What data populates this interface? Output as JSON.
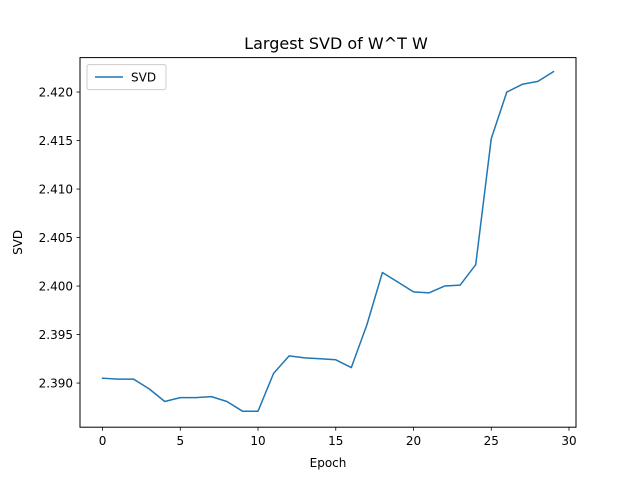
{
  "chart_data": {
    "type": "line",
    "title": "Largest SVD of W^T W",
    "xlabel": "Epoch",
    "ylabel": "SVD",
    "xlim": [
      -1.45,
      30.45
    ],
    "ylim": [
      2.38545,
      2.42355
    ],
    "xticks": [
      0,
      5,
      10,
      15,
      20,
      25,
      30
    ],
    "xtick_labels": [
      "0",
      "5",
      "10",
      "15",
      "20",
      "25",
      "30"
    ],
    "yticks": [
      2.39,
      2.395,
      2.4,
      2.405,
      2.41,
      2.415,
      2.42
    ],
    "ytick_labels": [
      "2.390",
      "2.395",
      "2.400",
      "2.405",
      "2.410",
      "2.415",
      "2.420"
    ],
    "grid": false,
    "legend": {
      "position": "upper-left"
    },
    "series": [
      {
        "name": "SVD",
        "color": "#1f77b4",
        "x": [
          0,
          1,
          2,
          3,
          4,
          5,
          6,
          7,
          8,
          9,
          10,
          11,
          12,
          13,
          14,
          15,
          16,
          17,
          18,
          19,
          20,
          21,
          22,
          23,
          24,
          25,
          26,
          27,
          28,
          29
        ],
        "y": [
          2.3905,
          2.3904,
          2.3904,
          2.3894,
          2.3881,
          2.3885,
          2.3885,
          2.3886,
          2.3881,
          2.3871,
          2.3871,
          2.391,
          2.3928,
          2.3926,
          2.3925,
          2.3924,
          2.3916,
          2.396,
          2.4014,
          2.4004,
          2.3994,
          2.3993,
          2.4,
          2.4001,
          2.4022,
          2.4152,
          2.42,
          2.4208,
          2.4211,
          2.4221
        ]
      }
    ]
  }
}
